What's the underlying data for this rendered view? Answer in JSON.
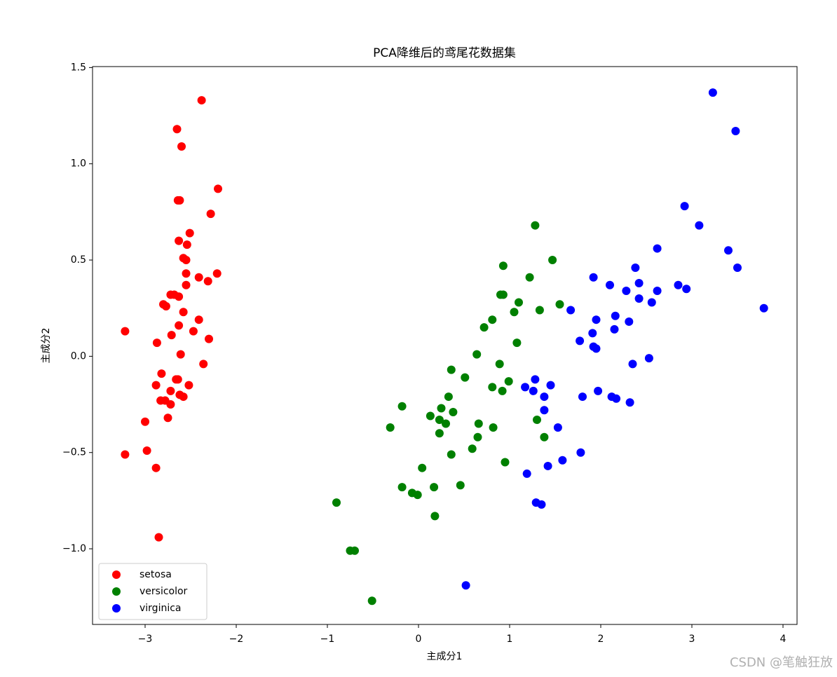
{
  "chart_data": {
    "type": "scatter",
    "title": "PCA降维后的鸢尾花数据集",
    "x_label": "主成分1",
    "y_label": "主成分2",
    "xlim": [
      -3.577,
      4.154
    ],
    "ylim": [
      -1.393,
      1.505
    ],
    "xticks": [
      {
        "value": -3,
        "label": "−3"
      },
      {
        "value": -2,
        "label": "−2"
      },
      {
        "value": -1,
        "label": "−1"
      },
      0,
      1,
      2,
      3,
      4
    ],
    "yticks": [
      {
        "value": -1.0,
        "label": "−1.0"
      },
      {
        "value": -0.5,
        "label": "−0.5"
      },
      {
        "value": 0,
        "label": "0.0"
      },
      0.5,
      {
        "value": 1.0,
        "label": "1.0"
      },
      1.5
    ],
    "legend": "lower left",
    "grid": false,
    "series": [
      {
        "name": "setosa",
        "color": "red",
        "x": [
          -2.38,
          -2.65,
          -2.6,
          -2.2,
          -2.64,
          -2.62,
          -2.28,
          -2.51,
          -2.63,
          -2.54,
          -2.58,
          -2.55,
          -2.55,
          -2.21,
          -2.41,
          -2.31,
          -2.55,
          -2.72,
          -2.68,
          -2.63,
          -2.8,
          -2.77,
          -2.58,
          -2.41,
          -2.63,
          -3.22,
          -2.47,
          -2.71,
          -2.3,
          -2.87,
          -2.61,
          -2.36,
          -2.82,
          -2.66,
          -2.64,
          -2.88,
          -2.52,
          -2.72,
          -2.62,
          -2.58,
          -2.83,
          -2.78,
          -2.72,
          -2.75,
          -3.0,
          -2.98,
          -3.22,
          -2.88,
          -2.85
        ],
        "y": [
          1.33,
          1.18,
          1.09,
          0.87,
          0.81,
          0.81,
          0.74,
          0.64,
          0.6,
          0.58,
          0.51,
          0.5,
          0.43,
          0.43,
          0.41,
          0.39,
          0.37,
          0.32,
          0.32,
          0.31,
          0.27,
          0.26,
          0.23,
          0.19,
          0.16,
          0.13,
          0.13,
          0.11,
          0.09,
          0.07,
          0.01,
          -0.04,
          -0.09,
          -0.12,
          -0.12,
          -0.15,
          -0.15,
          -0.18,
          -0.2,
          -0.21,
          -0.23,
          -0.23,
          -0.25,
          -0.32,
          -0.34,
          -0.49,
          -0.51,
          -0.58,
          -0.94
        ]
      },
      {
        "name": "versicolor",
        "color": "green",
        "x": [
          1.28,
          1.47,
          0.93,
          1.22,
          0.9,
          0.93,
          1.1,
          1.33,
          1.55,
          1.05,
          0.81,
          0.72,
          1.08,
          0.64,
          0.89,
          0.36,
          0.51,
          0.99,
          0.81,
          0.92,
          0.33,
          -0.18,
          0.13,
          0.25,
          0.23,
          0.3,
          0.38,
          0.66,
          0.82,
          1.3,
          -0.31,
          0.23,
          0.65,
          1.38,
          0.36,
          0.59,
          0.04,
          0.95,
          0.46,
          -0.18,
          -0.07,
          -0.01,
          0.17,
          -0.9,
          0.18,
          -0.75,
          -0.7,
          -0.51
        ],
        "y": [
          0.68,
          0.5,
          0.47,
          0.41,
          0.32,
          0.32,
          0.28,
          0.24,
          0.27,
          0.23,
          0.19,
          0.15,
          0.07,
          0.01,
          -0.04,
          -0.07,
          -0.11,
          -0.13,
          -0.16,
          -0.18,
          -0.21,
          -0.26,
          -0.31,
          -0.27,
          -0.33,
          -0.35,
          -0.29,
          -0.35,
          -0.37,
          -0.33,
          -0.37,
          -0.4,
          -0.42,
          -0.42,
          -0.51,
          -0.48,
          -0.58,
          -0.55,
          -0.67,
          -0.68,
          -0.71,
          -0.72,
          -0.68,
          -0.76,
          -0.83,
          -1.01,
          -1.01,
          -1.27
        ]
      },
      {
        "name": "virginica",
        "color": "blue",
        "x": [
          3.23,
          3.48,
          2.92,
          3.08,
          2.62,
          3.4,
          3.5,
          2.38,
          2.42,
          1.92,
          2.1,
          2.28,
          2.42,
          2.62,
          2.56,
          2.85,
          2.94,
          3.79,
          1.67,
          2.16,
          1.95,
          2.31,
          2.15,
          1.91,
          1.77,
          1.92,
          1.95,
          2.35,
          2.53,
          1.28,
          1.17,
          1.45,
          1.26,
          1.38,
          1.97,
          1.8,
          2.12,
          2.17,
          2.32,
          1.38,
          1.53,
          1.58,
          1.78,
          1.42,
          1.19,
          1.29,
          1.35,
          0.52
        ],
        "y": [
          1.37,
          1.17,
          0.78,
          0.68,
          0.56,
          0.55,
          0.46,
          0.46,
          0.38,
          0.41,
          0.37,
          0.34,
          0.3,
          0.34,
          0.28,
          0.37,
          0.35,
          0.25,
          0.24,
          0.21,
          0.19,
          0.18,
          0.14,
          0.12,
          0.08,
          0.05,
          0.04,
          -0.04,
          -0.01,
          -0.12,
          -0.16,
          -0.15,
          -0.18,
          -0.21,
          -0.18,
          -0.21,
          -0.21,
          -0.22,
          -0.24,
          -0.28,
          -0.37,
          -0.54,
          -0.5,
          -0.57,
          -0.61,
          -0.76,
          -0.77,
          -1.19
        ]
      }
    ],
    "watermark": "CSDN @笔触狂放"
  }
}
